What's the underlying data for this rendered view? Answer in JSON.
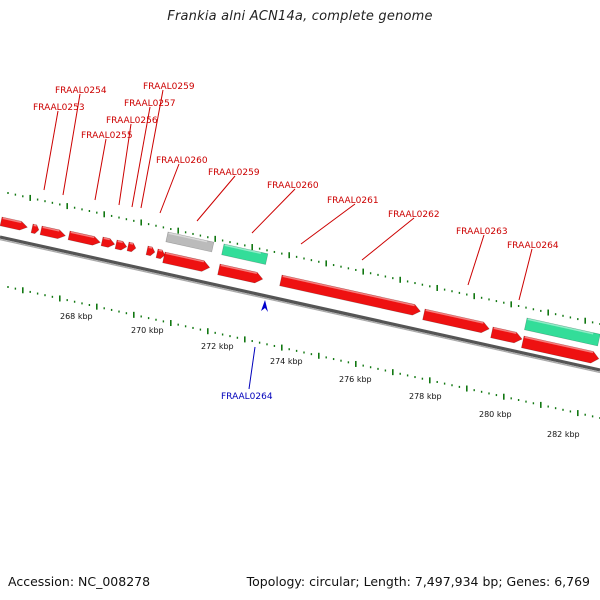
{
  "title": "Frankia alni ACN14a, complete genome",
  "footer": {
    "accession": "Accession: NC_008278",
    "summary": "Topology: circular; Length: 7,497,934 bp; Genes: 6,769"
  },
  "colors": {
    "gene": "#ee1111",
    "rna": "#33dd99",
    "pseudo": "#bbbbbb",
    "label": "#cc0000",
    "selected_label": "#0000bb",
    "tick": "#117711",
    "backbone": "#777777"
  },
  "ruler": {
    "unit": "kbp",
    "major_ticks": [
      {
        "label": "268 kbp"
      },
      {
        "label": "270 kbp"
      },
      {
        "label": "272 kbp"
      },
      {
        "label": "274 kbp"
      },
      {
        "label": "276 kbp"
      },
      {
        "label": "278 kbp"
      },
      {
        "label": "280 kbp"
      },
      {
        "label": "282 kbp"
      }
    ]
  },
  "gene_labels": [
    {
      "name": "FRAAL0253"
    },
    {
      "name": "FRAAL0254"
    },
    {
      "name": "FRAAL0255"
    },
    {
      "name": "FRAAL0256"
    },
    {
      "name": "FRAAL0257"
    },
    {
      "name": "FRAAL0259"
    },
    {
      "name": "FRAAL0260"
    },
    {
      "name": "FRAAL0259"
    },
    {
      "name": "FRAAL0260"
    },
    {
      "name": "FRAAL0261"
    },
    {
      "name": "FRAAL0262"
    },
    {
      "name": "FRAAL0263"
    },
    {
      "name": "FRAAL0264"
    }
  ],
  "selected_label": {
    "name": "FRAAL0264"
  }
}
